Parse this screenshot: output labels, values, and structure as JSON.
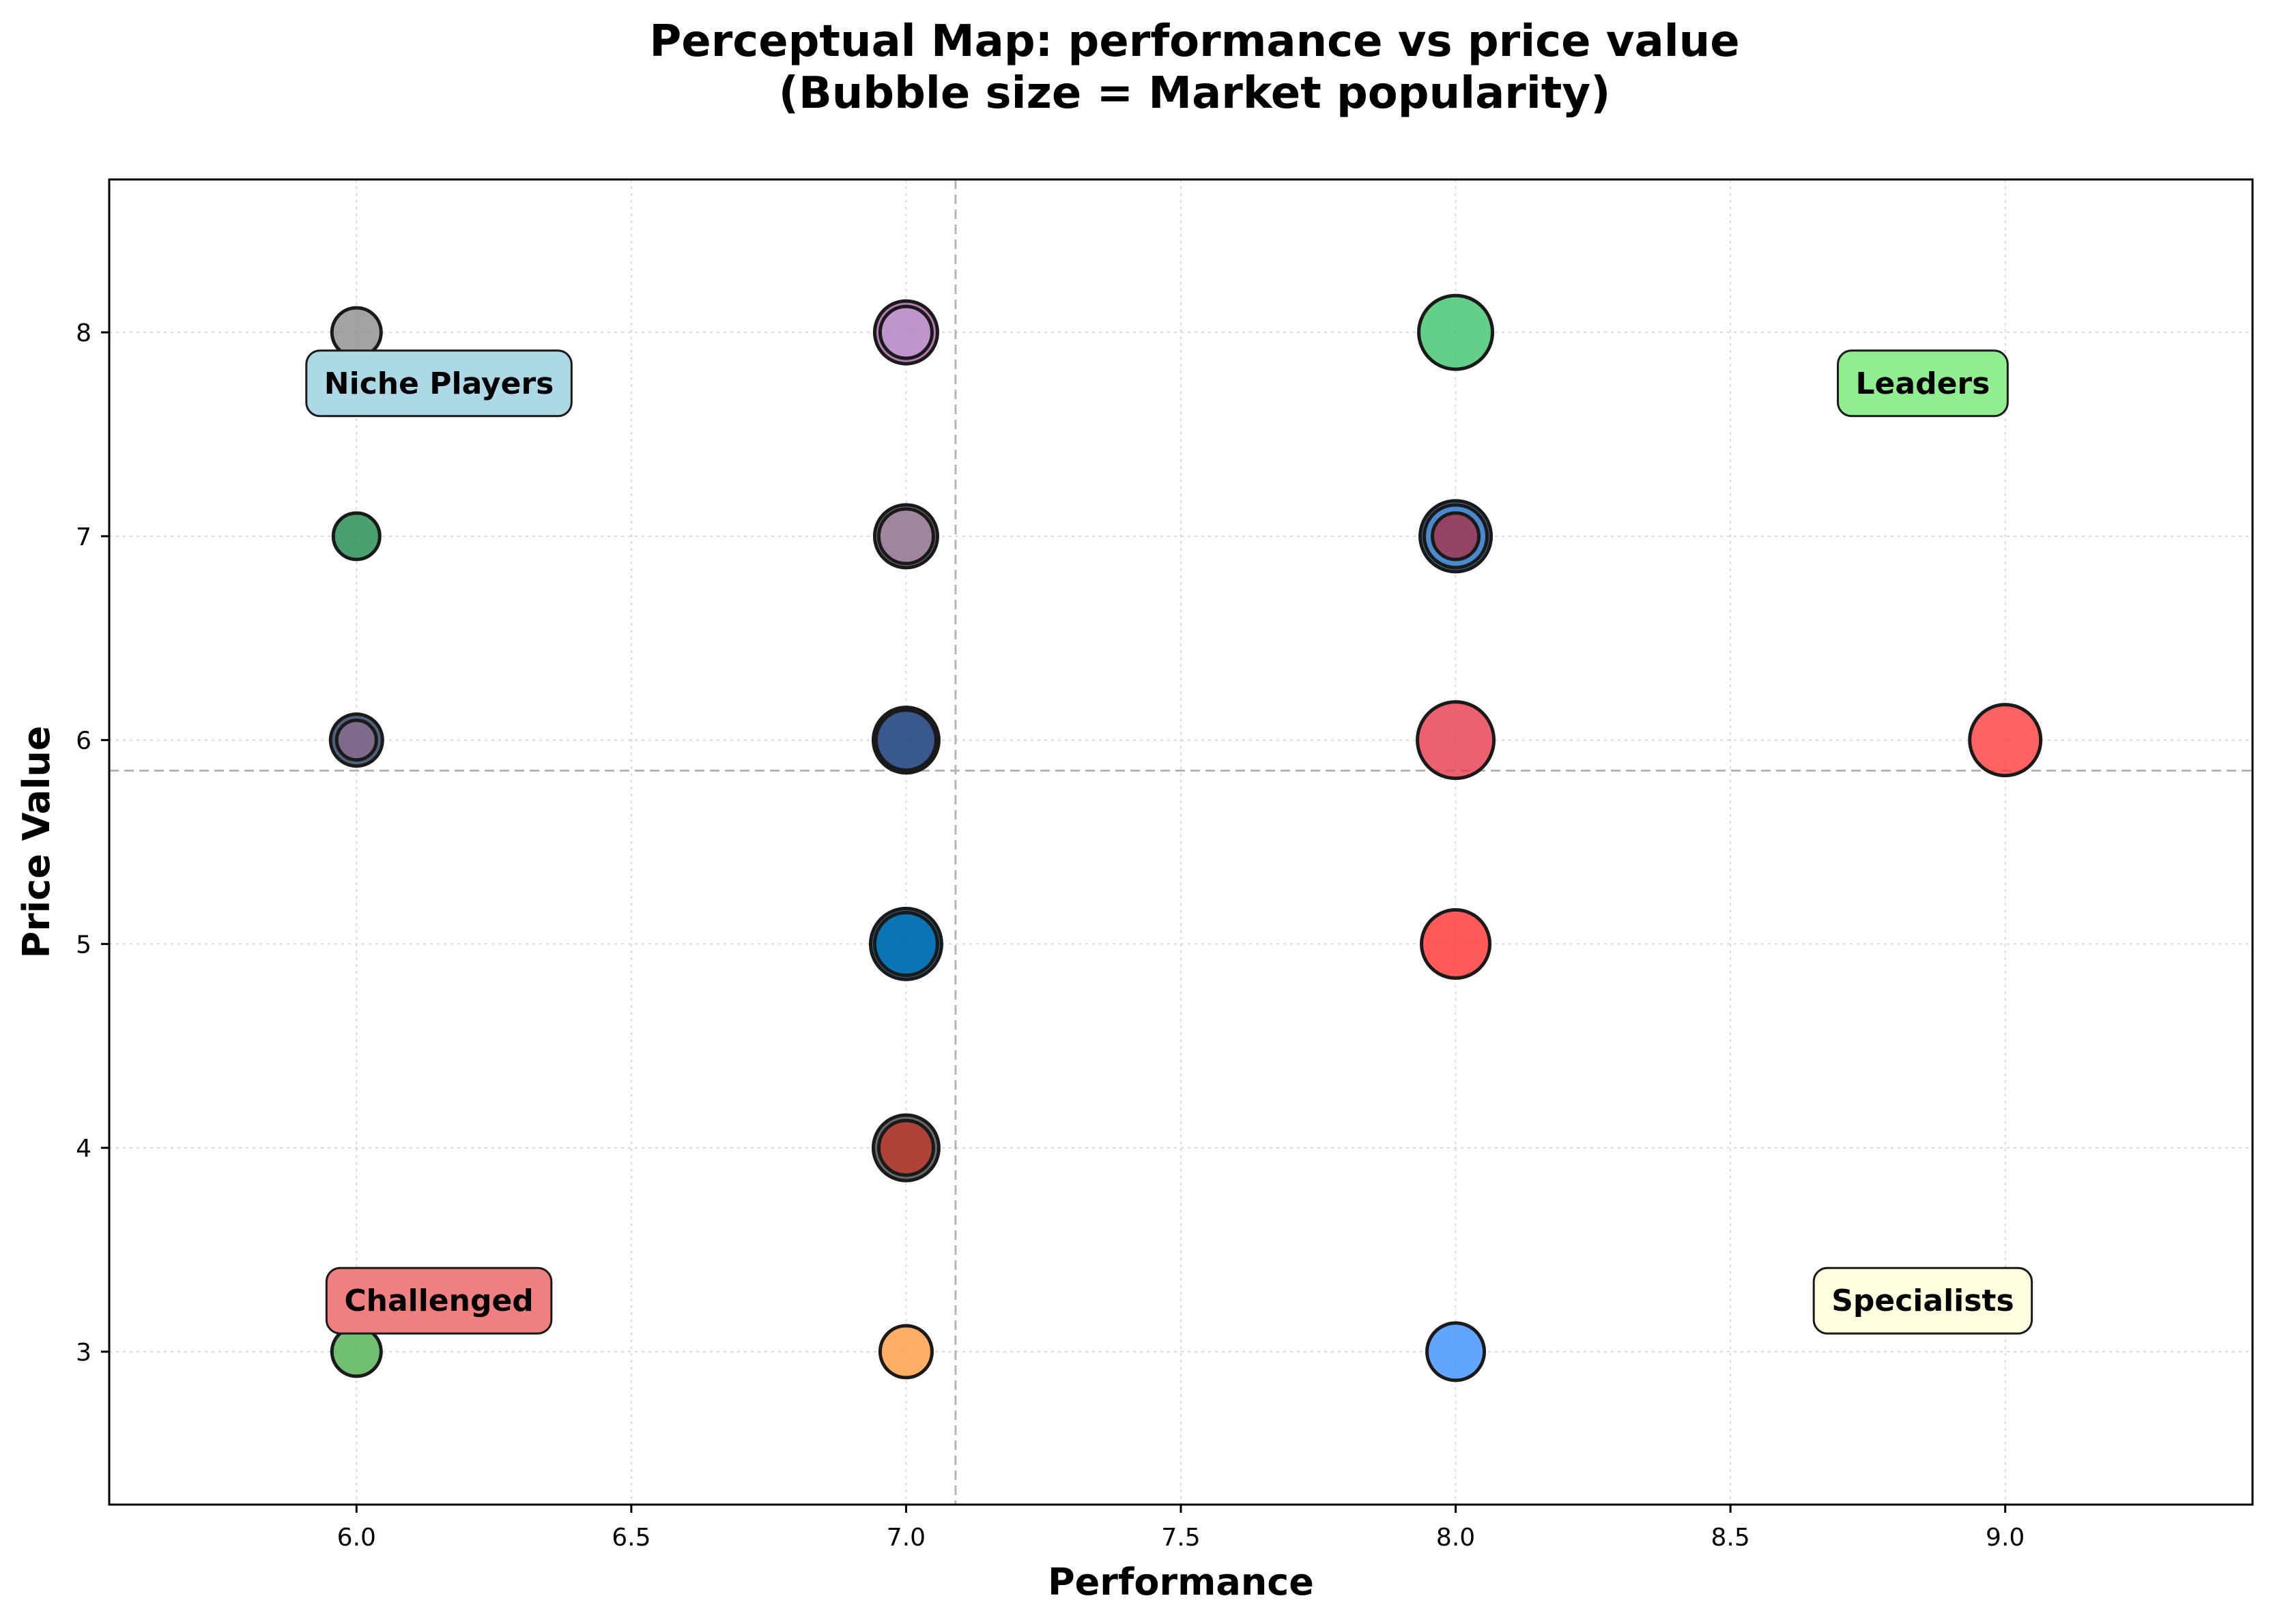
{
  "chart_data": {
    "type": "scatter",
    "title": "Perceptual Map: performance vs price value",
    "subtitle": "(Bubble size = Market popularity)",
    "xlabel": "Performance",
    "ylabel": "Price Value",
    "xlim": [
      5.55,
      9.45
    ],
    "ylim": [
      2.25,
      8.75
    ],
    "xticks": [
      "6.0",
      "6.5",
      "7.0",
      "7.5",
      "8.0",
      "8.5",
      "9.0"
    ],
    "yticks": [
      "3",
      "4",
      "5",
      "6",
      "7",
      "8"
    ],
    "grid": true,
    "reference_lines": {
      "x": 7.09,
      "y": 5.85
    },
    "quadrants": [
      {
        "label": "Niche Players",
        "x": 6.15,
        "y": 7.75,
        "color": "#add8e6"
      },
      {
        "label": "Leaders",
        "x": 8.85,
        "y": 7.75,
        "color": "#90ee90"
      },
      {
        "label": "Challenged",
        "x": 6.15,
        "y": 3.25,
        "color": "#f08080"
      },
      {
        "label": "Specialists",
        "x": 8.85,
        "y": 3.25,
        "color": "#ffffe0"
      }
    ],
    "points": [
      {
        "x": 6,
        "y": 8,
        "popularity": 36,
        "color": "#8c8c8c"
      },
      {
        "x": 6,
        "y": 7,
        "popularity": 34,
        "color": "#1a8a4a"
      },
      {
        "x": 6,
        "y": 6,
        "popularity": 38,
        "color": "#23395d"
      },
      {
        "x": 6,
        "y": 6,
        "popularity": 29,
        "color": "#8c6d8f"
      },
      {
        "x": 6,
        "y": 3,
        "popularity": 36,
        "color": "#4caf50"
      },
      {
        "x": 7,
        "y": 8,
        "popularity": 46,
        "color": "#a05a9c"
      },
      {
        "x": 7,
        "y": 8,
        "popularity": 38,
        "color": "#c39bd3"
      },
      {
        "x": 7,
        "y": 7,
        "popularity": 46,
        "color": "#555555"
      },
      {
        "x": 7,
        "y": 7,
        "popularity": 40,
        "color": "#a88aa6"
      },
      {
        "x": 7,
        "y": 6,
        "popularity": 48,
        "color": "#1c3f80"
      },
      {
        "x": 7,
        "y": 6,
        "popularity": 44,
        "color": "#34558b"
      },
      {
        "x": 7,
        "y": 5,
        "popularity": 52,
        "color": "#00426b"
      },
      {
        "x": 7,
        "y": 5,
        "popularity": 46,
        "color": "#0077c0"
      },
      {
        "x": 7,
        "y": 4,
        "popularity": 48,
        "color": "#444444"
      },
      {
        "x": 7,
        "y": 4,
        "popularity": 40,
        "color": "#c0392b"
      },
      {
        "x": 7,
        "y": 3,
        "popularity": 38,
        "color": "#ff9a3c"
      },
      {
        "x": 8,
        "y": 8,
        "popularity": 54,
        "color": "#3cc46b"
      },
      {
        "x": 8,
        "y": 7,
        "popularity": 52,
        "color": "#1f4f7a"
      },
      {
        "x": 8,
        "y": 7,
        "popularity": 46,
        "color": "#4a90d9"
      },
      {
        "x": 8,
        "y": 7,
        "popularity": 34,
        "color": "#a8324a"
      },
      {
        "x": 8,
        "y": 6,
        "popularity": 56,
        "color": "#e8384b"
      },
      {
        "x": 8,
        "y": 5,
        "popularity": 50,
        "color": "#ff3030"
      },
      {
        "x": 8,
        "y": 3,
        "popularity": 42,
        "color": "#3b8eff"
      },
      {
        "x": 9,
        "y": 6,
        "popularity": 52,
        "color": "#ff3b3b"
      }
    ]
  }
}
